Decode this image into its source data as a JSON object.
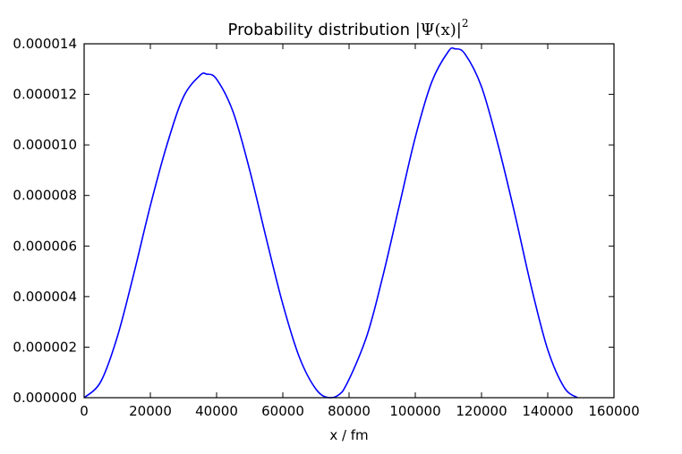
{
  "chart_data": {
    "type": "line",
    "title": "Probability distribution |Ψ(x)|²",
    "title_text": "Probability distribution ",
    "title_math": "|Ψ(x)|",
    "title_exponent": "2",
    "xlabel": "x / fm",
    "ylabel": "",
    "xlim": [
      0,
      160000
    ],
    "ylim": [
      0,
      1.4e-05
    ],
    "xticks": [
      0,
      20000,
      40000,
      60000,
      80000,
      100000,
      120000,
      140000,
      160000
    ],
    "xtick_labels": [
      "0",
      "20000",
      "40000",
      "60000",
      "80000",
      "100000",
      "120000",
      "140000",
      "160000"
    ],
    "yticks": [
      0,
      2e-06,
      4e-06,
      6e-06,
      8e-06,
      1e-05,
      1.2e-05,
      1.4e-05
    ],
    "ytick_labels": [
      "0.000000",
      "0.000002",
      "0.000004",
      "0.000006",
      "0.000008",
      "0.000010",
      "0.000012",
      "0.000014"
    ],
    "grid": false,
    "line_color": "#0000ff",
    "series": [
      {
        "x": [
          0,
          5000,
          10000,
          15000,
          20000,
          25000,
          30000,
          35000,
          37000,
          40000,
          45000,
          50000,
          55000,
          60000,
          65000,
          70000,
          74000,
          78000,
          85000,
          90000,
          95000,
          100000,
          105000,
          110000,
          112000,
          115000,
          120000,
          125000,
          130000,
          135000,
          140000,
          145000,
          149000
        ],
        "y": [
          0,
          6.3e-07,
          2.4e-06,
          4.9e-06,
          7.6e-06,
          1e-05,
          1.19e-05,
          1.275e-05,
          1.28e-05,
          1.26e-05,
          1.13e-05,
          9e-06,
          6.3e-06,
          3.7e-06,
          1.6e-06,
          3.4e-07,
          0,
          2.4e-07,
          2.3e-06,
          4.7e-06,
          7.5e-06,
          1.03e-05,
          1.25e-05,
          1.37e-05,
          1.38e-05,
          1.36e-05,
          1.23e-05,
          1e-05,
          7.3e-06,
          4.4e-06,
          1.9e-06,
          4e-07,
          0
        ]
      }
    ]
  }
}
